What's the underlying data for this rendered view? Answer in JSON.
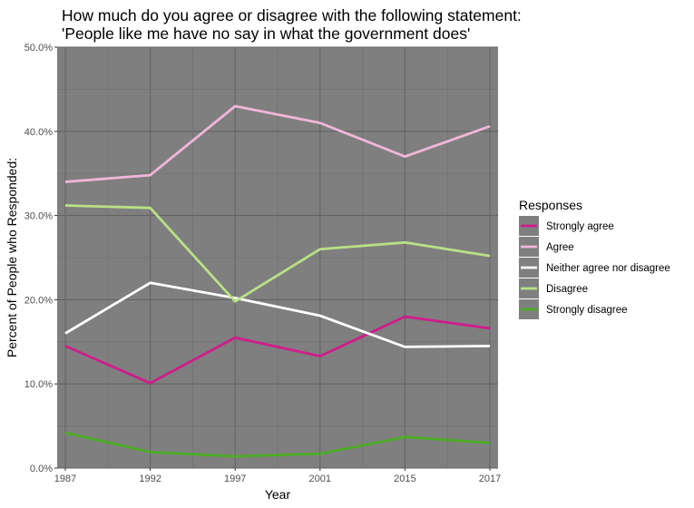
{
  "chart_data": {
    "type": "line",
    "title": [
      "How much do you agree or disagree with the following statement:",
      "'People like me have no say in what the government does'"
    ],
    "xlabel": "Year",
    "ylabel": "Percent of People who Responded:",
    "x": [
      "1987",
      "1992",
      "1997",
      "2001",
      "2015",
      "2017"
    ],
    "ylim": [
      0,
      50
    ],
    "yticks": [
      "0.0%",
      "10.0%",
      "20.0%",
      "30.0%",
      "40.0%",
      "50.0%"
    ],
    "grid": true,
    "legend": {
      "title": "Responses",
      "position": "right"
    },
    "background": "#7f7f7f",
    "series": [
      {
        "name": "Strongly agree",
        "color": "#d01c8b",
        "values": [
          14.5,
          10.1,
          15.5,
          13.3,
          18.0,
          16.6
        ]
      },
      {
        "name": "Agree",
        "color": "#f1b6da",
        "values": [
          34.0,
          34.8,
          43.0,
          41.0,
          37.0,
          40.6
        ]
      },
      {
        "name": "Neither agree nor disagree",
        "color": "#ffffff",
        "values": [
          16.0,
          22.0,
          20.2,
          18.1,
          14.4,
          14.5
        ]
      },
      {
        "name": "Disagree",
        "color": "#b8e186",
        "values": [
          31.2,
          30.9,
          19.8,
          26.0,
          26.8,
          25.2
        ]
      },
      {
        "name": "Strongly disagree",
        "color": "#4dac26",
        "values": [
          4.2,
          1.9,
          1.4,
          1.7,
          3.7,
          3.0
        ]
      }
    ]
  }
}
